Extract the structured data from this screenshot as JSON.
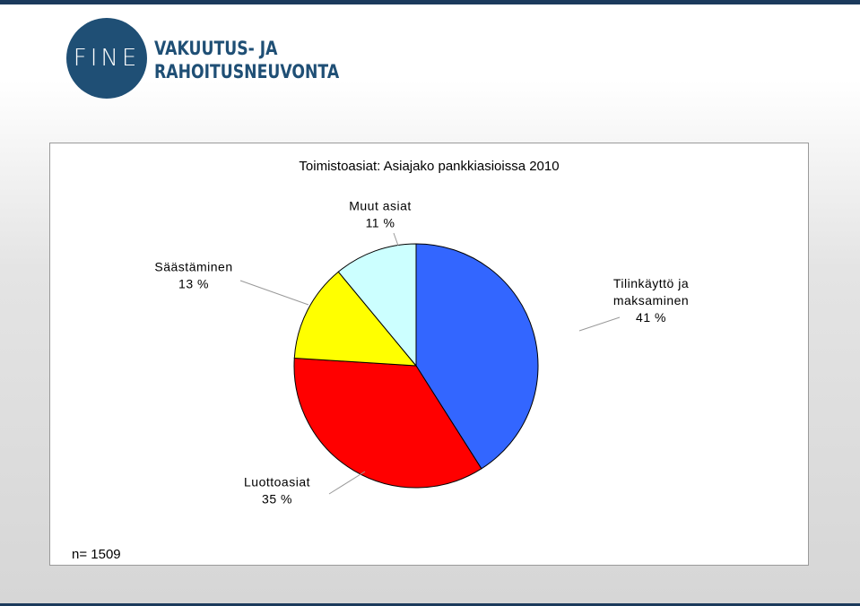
{
  "logo": {
    "mark": "FINE",
    "line1": "VAKUUTUS- JA",
    "line2": "RAHOITUSNEUVONTA"
  },
  "colors": {
    "brand": "#1f4f75",
    "top_bar": "#1b3a5c"
  },
  "chart_data": {
    "type": "pie",
    "title": "Toimistoasiat: Asiajako pankkiasioissa 2010",
    "note": "n= 1509",
    "slices": [
      {
        "label_lines": [
          "Tilinkäyttö ja",
          "maksaminen"
        ],
        "value_label": "41 %",
        "value": 41,
        "color": "#3366ff"
      },
      {
        "label_lines": [
          "Luottoasiat"
        ],
        "value_label": "35 %",
        "value": 35,
        "color": "#ff0000"
      },
      {
        "label_lines": [
          "Säästäminen"
        ],
        "value_label": "13 %",
        "value": 13,
        "color": "#ffff00"
      },
      {
        "label_lines": [
          "Muut asiat"
        ],
        "value_label": "11 %",
        "value": 11,
        "color": "#ccffff"
      }
    ]
  }
}
